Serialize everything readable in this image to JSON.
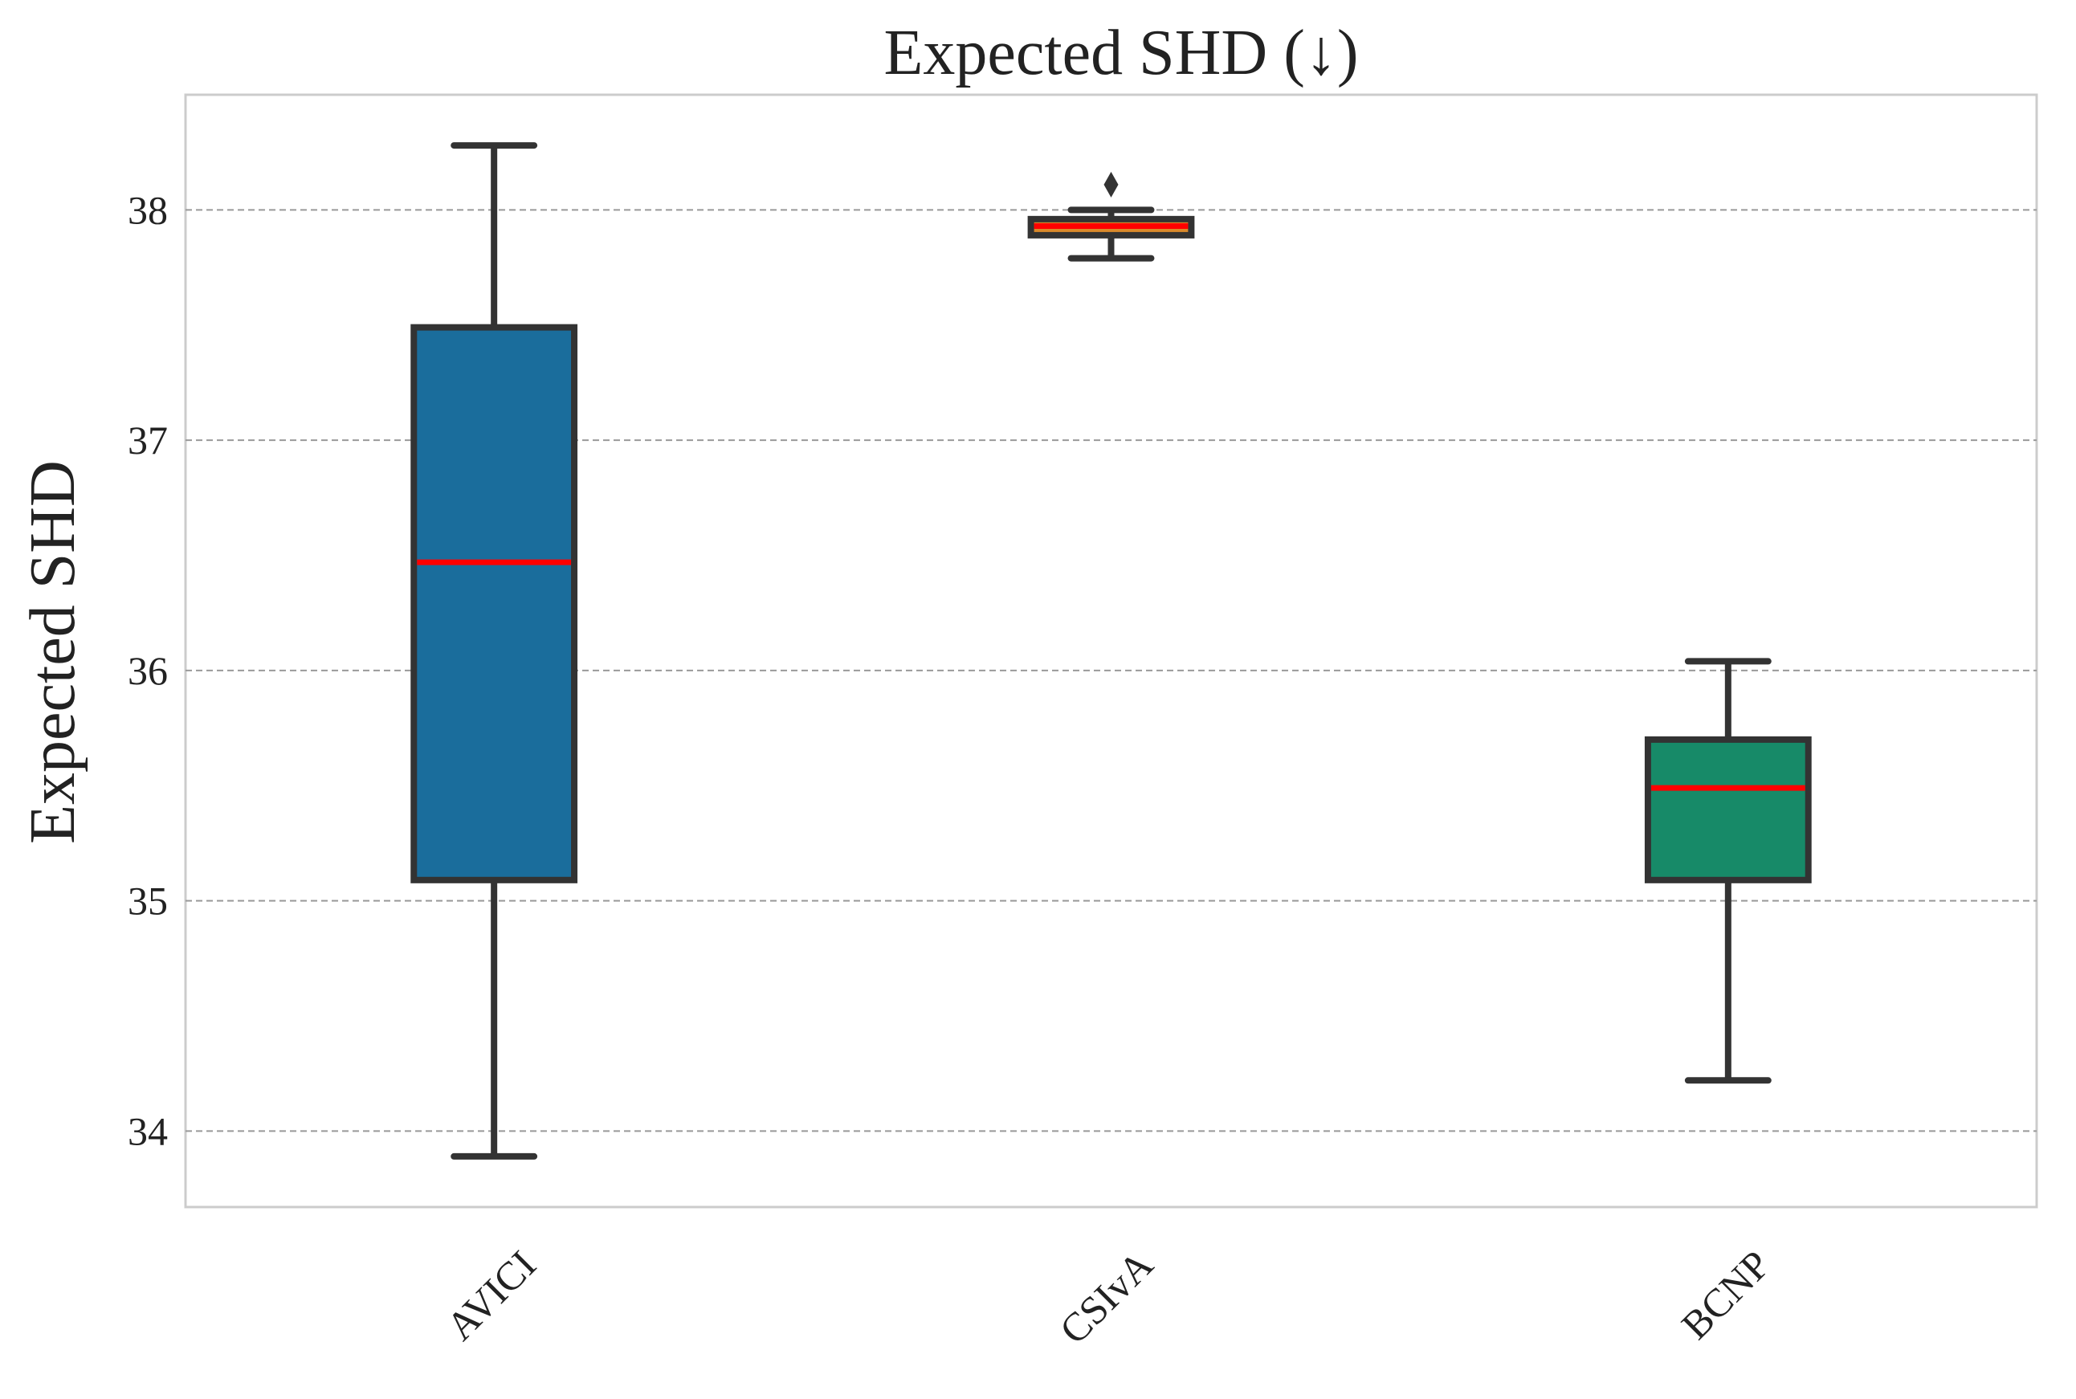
{
  "chart_data": {
    "type": "box",
    "title": "Expected SHD (↓)",
    "xlabel": "",
    "ylabel": "Expected SHD",
    "ylim": [
      33.67,
      38.5
    ],
    "yticks": [
      34,
      35,
      36,
      37,
      38
    ],
    "grid": "horizontal dashed",
    "legend": "none",
    "categories": [
      "AVICI",
      "CSIvA",
      "BCNP"
    ],
    "boxes": [
      {
        "name": "AVICI",
        "whisker_low": 33.89,
        "q1": 35.09,
        "median": 36.47,
        "q3": 37.49,
        "whisker_high": 38.28,
        "outliers": [],
        "color": "#1a6d9c"
      },
      {
        "name": "CSIvA",
        "whisker_low": 37.79,
        "q1": 37.89,
        "median": 37.93,
        "q3": 37.96,
        "whisker_high": 38.0,
        "outliers": [
          38.11
        ],
        "color": "#d98a2b"
      },
      {
        "name": "BCNP",
        "whisker_low": 34.22,
        "q1": 35.09,
        "median": 35.49,
        "q3": 35.7,
        "whisker_high": 36.04,
        "outliers": [],
        "color": "#178a68"
      }
    ],
    "median_color": "#ff0000",
    "edge_color": "#333333"
  }
}
